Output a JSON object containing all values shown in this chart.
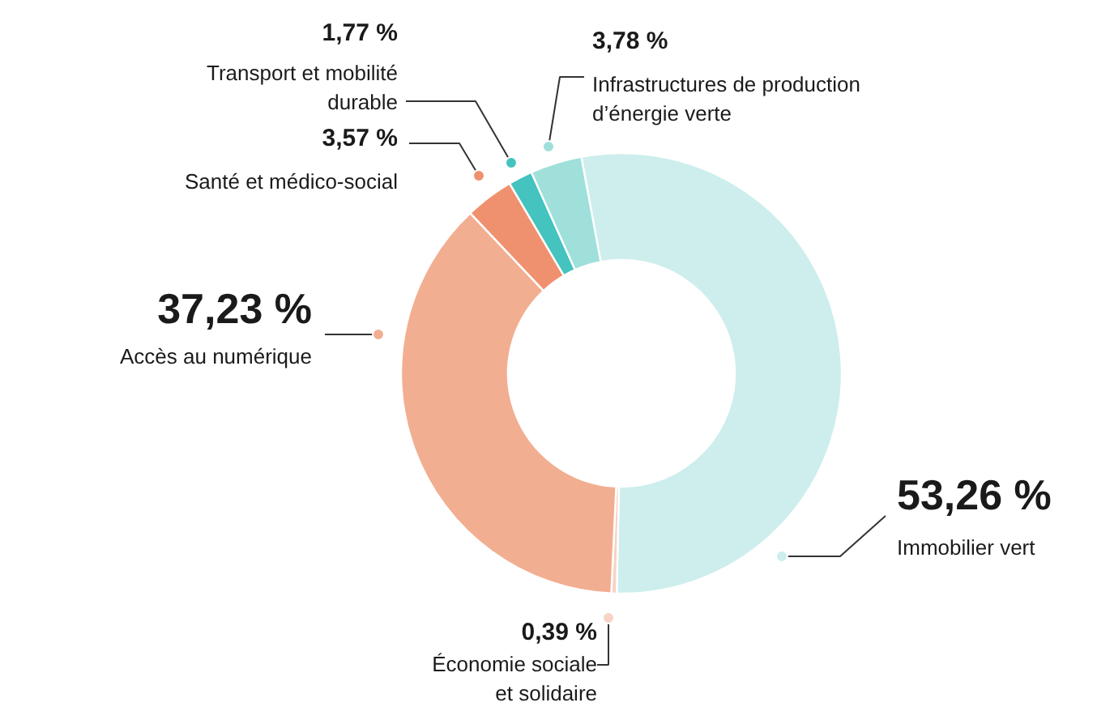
{
  "chart_data": {
    "type": "donut",
    "categories": [
      "Immobilier vert",
      "Économie sociale\net solidaire",
      "Accès au numérique",
      "Santé et médico-social",
      "Transport et mobilité\ndurable",
      "Infrastructures de production\nd’énergie verte"
    ],
    "values": [
      53.26,
      0.39,
      37.23,
      3.57,
      1.77,
      3.78
    ],
    "colors": [
      "#cdeeec",
      "#f6d3c4",
      "#f2ae91",
      "#ef916f",
      "#44c3bf",
      "#9fe0db"
    ],
    "value_labels": [
      "53,26 %",
      "0,39 %",
      "37,23 %",
      "3,57 %",
      "1,77 %",
      "3,78 %"
    ]
  }
}
